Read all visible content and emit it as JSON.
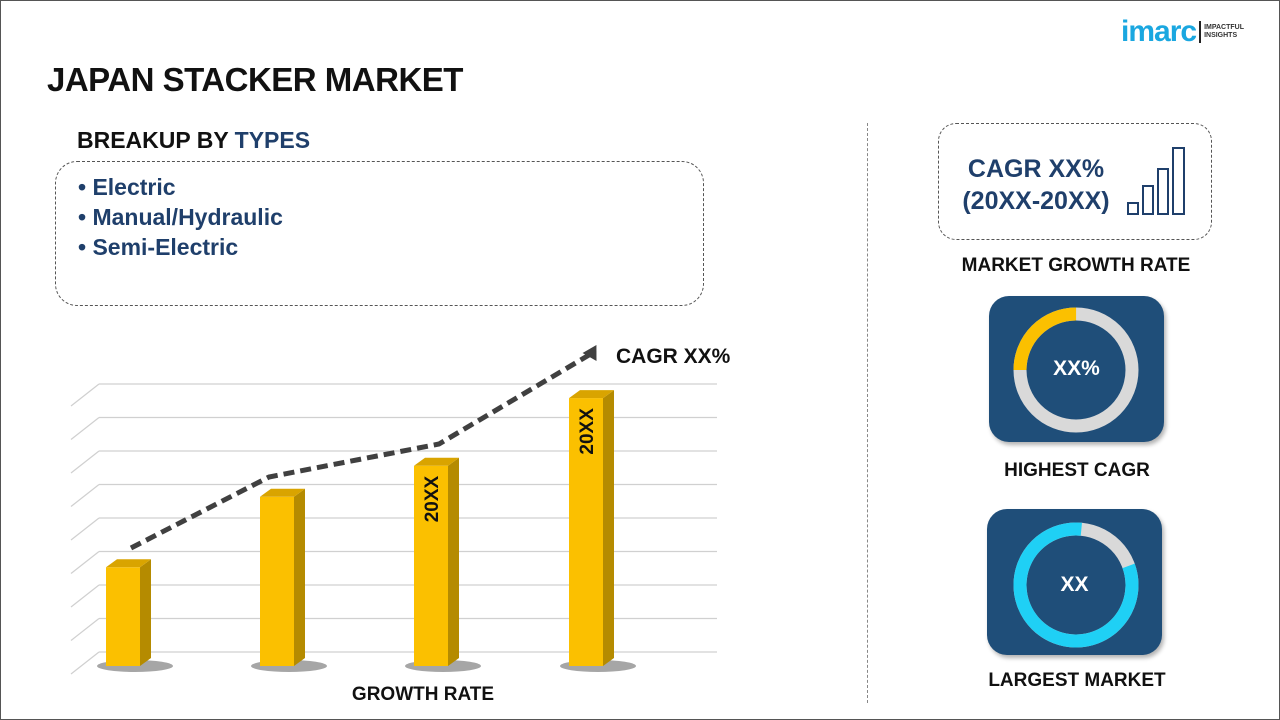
{
  "header": {
    "title": "JAPAN STACKER MARKET",
    "logo": {
      "brand": "imarc",
      "tagline_1": "IMPACTFUL",
      "tagline_2": "INSIGHTS"
    }
  },
  "breakup": {
    "prefix": "BREAKUP BY",
    "highlight": "TYPES",
    "items": [
      "• Electric",
      "• Manual/Hydraulic",
      "• Semi-Electric"
    ]
  },
  "chart_data": {
    "type": "bar",
    "categories": [
      "",
      "",
      "",
      ""
    ],
    "values": [
      35,
      60,
      71,
      95
    ],
    "ylim": [
      0,
      100
    ],
    "bar_labels": [
      "",
      "",
      "20XX",
      "20XX"
    ],
    "trend_label": "CAGR XX%",
    "xlabel": "GROWTH RATE",
    "ylabel": "",
    "grid": true,
    "colors": {
      "bar": "#fbc000",
      "bar_side": "#b58b00",
      "trend": "#404040"
    }
  },
  "side": {
    "cagr_line1": "CAGR XX%",
    "cagr_line2": "(20XX-20XX)",
    "growth_label": "MARKET GROWTH RATE",
    "highest_value": "XX%",
    "highest_label": "HIGHEST CAGR",
    "highest_fraction": 0.25,
    "largest_value": "XX",
    "largest_label": "LARGEST MARKET",
    "largest_fraction": 0.82,
    "colors": {
      "tile": "#1f4e79",
      "yellow": "#fbc000",
      "cyan": "#1fd0f5",
      "grey": "#d9d9d9",
      "text": "#1f3f6b"
    }
  }
}
